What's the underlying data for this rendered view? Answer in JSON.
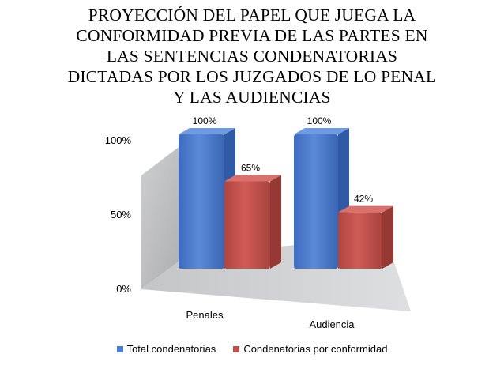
{
  "chart_data": {
    "type": "bar",
    "title": "PROYECCIÓN DEL PAPEL QUE JUEGA LA\nCONFORMIDAD PREVIA DE LAS PARTES EN\nLAS SENTENCIAS CONDENATORIAS\nDICTADAS POR LOS JUZGADOS DE LO PENAL\nY LAS AUDIENCIAS",
    "categories": [
      "Penales",
      "Audiencia"
    ],
    "series": [
      {
        "name": "Total condenatorias",
        "values": [
          100,
          100
        ],
        "labels": [
          "100%",
          "100%"
        ],
        "color": "#4a7ccf"
      },
      {
        "name": "Condenatorias por conformidad",
        "values": [
          65,
          42
        ],
        "labels": [
          "65%",
          "42%"
        ],
        "color": "#c0504d"
      }
    ],
    "ylim": [
      0,
      100
    ],
    "yticks": [
      "0%",
      "50%",
      "100%"
    ],
    "ytick_values": [
      0,
      50,
      100
    ],
    "three_d": true,
    "grid": false,
    "legend_position": "bottom"
  }
}
